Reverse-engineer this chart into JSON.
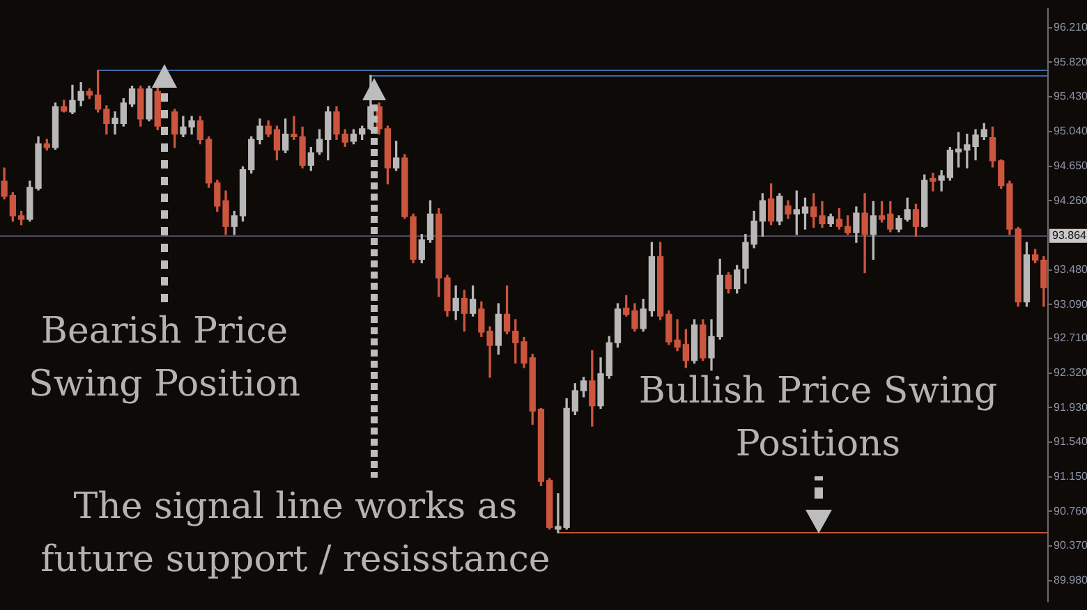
{
  "chart_data": {
    "type": "candlestick",
    "categories": [
      null,
      null,
      null,
      null,
      null,
      null,
      null,
      null,
      null,
      null,
      null,
      null,
      null,
      null,
      null,
      null,
      null,
      null,
      null,
      null,
      null,
      null,
      null,
      null,
      null,
      null,
      null,
      null,
      null,
      null,
      null,
      null,
      null,
      null,
      null,
      null,
      null,
      null,
      null,
      null,
      null,
      null,
      null,
      null,
      null,
      null,
      null,
      null,
      null,
      null,
      null,
      null,
      null,
      null,
      null,
      null,
      null,
      null,
      null,
      null,
      null,
      null,
      null,
      null,
      null,
      null,
      null,
      null,
      null,
      null,
      null,
      null,
      null,
      null,
      null,
      null,
      null,
      null,
      null,
      null,
      null,
      null,
      null,
      null,
      null,
      null,
      null,
      null,
      null,
      null,
      null,
      null,
      null,
      null,
      null,
      null,
      null,
      null,
      null,
      null,
      null,
      null,
      null,
      null,
      null,
      null,
      null,
      null,
      null,
      null,
      null,
      null,
      null,
      null,
      null,
      null,
      null,
      null,
      null,
      null,
      null,
      null,
      null
    ],
    "ohlc": [
      [
        94.48,
        94.63,
        94.28,
        94.31
      ],
      [
        94.32,
        94.35,
        94.03,
        94.09
      ],
      [
        94.09,
        94.14,
        93.99,
        94.05
      ],
      [
        94.05,
        94.48,
        94.03,
        94.41
      ],
      [
        94.4,
        94.98,
        94.38,
        94.9
      ],
      [
        94.9,
        94.95,
        94.83,
        94.86
      ],
      [
        94.86,
        95.36,
        94.84,
        95.32
      ],
      [
        95.32,
        95.39,
        95.26,
        95.27
      ],
      [
        95.26,
        95.56,
        95.24,
        95.39
      ],
      [
        95.39,
        95.59,
        95.33,
        95.49
      ],
      [
        95.49,
        95.52,
        95.41,
        95.45
      ],
      [
        95.45,
        95.73,
        95.26,
        95.29
      ],
      [
        95.29,
        95.33,
        95.01,
        95.13
      ],
      [
        95.13,
        95.26,
        95.01,
        95.19
      ],
      [
        95.13,
        95.41,
        95.1,
        95.36
      ],
      [
        95.35,
        95.55,
        95.32,
        95.52
      ],
      [
        95.52,
        95.55,
        95.1,
        95.18
      ],
      [
        95.18,
        95.55,
        95.16,
        95.52
      ],
      [
        95.49,
        95.55,
        95.06,
        95.1
      ],
      null,
      [
        95.26,
        95.29,
        94.86,
        95.01
      ],
      [
        95.01,
        95.21,
        94.98,
        95.09
      ],
      [
        95.09,
        95.21,
        95.01,
        95.16
      ],
      [
        95.16,
        95.21,
        94.9,
        94.95
      ],
      [
        94.95,
        94.98,
        94.41,
        94.46
      ],
      [
        94.46,
        94.49,
        94.14,
        94.2
      ],
      [
        94.26,
        94.37,
        93.88,
        93.97
      ],
      [
        93.97,
        94.14,
        93.88,
        94.09
      ],
      [
        94.09,
        94.64,
        94.03,
        94.61
      ],
      [
        94.61,
        94.98,
        94.57,
        94.95
      ],
      [
        94.95,
        95.18,
        94.9,
        95.1
      ],
      [
        95.1,
        95.16,
        94.98,
        95.01
      ],
      [
        95.06,
        95.1,
        94.72,
        94.83
      ],
      [
        94.83,
        95.18,
        94.8,
        95.01
      ],
      [
        95.01,
        95.21,
        94.95,
        94.98
      ],
      [
        94.98,
        95.09,
        94.63,
        94.66
      ],
      [
        94.66,
        94.86,
        94.6,
        94.8
      ],
      [
        94.81,
        95.06,
        94.78,
        94.95
      ],
      [
        94.95,
        95.32,
        94.72,
        95.26
      ],
      [
        95.26,
        95.32,
        94.95,
        95.01
      ],
      [
        95.01,
        95.06,
        94.87,
        94.92
      ],
      [
        94.93,
        95.06,
        94.9,
        95.01
      ],
      [
        95.01,
        95.1,
        94.95,
        95.07
      ],
      [
        95.07,
        95.67,
        95.06,
        95.32
      ],
      [
        95.32,
        95.36,
        95.01,
        95.07
      ],
      [
        95.07,
        95.1,
        94.45,
        94.63
      ],
      [
        94.63,
        94.93,
        94.6,
        94.74
      ],
      [
        94.74,
        94.78,
        94.06,
        94.08
      ],
      [
        94.08,
        94.11,
        93.56,
        93.6
      ],
      [
        93.6,
        93.88,
        93.56,
        93.82
      ],
      [
        93.82,
        94.26,
        93.79,
        94.11
      ],
      [
        94.11,
        94.17,
        93.18,
        93.39
      ],
      [
        93.39,
        93.42,
        92.96,
        93.02
      ],
      [
        93.02,
        93.3,
        92.92,
        93.16
      ],
      [
        93.16,
        93.25,
        92.79,
        92.99
      ],
      [
        92.99,
        93.3,
        92.96,
        93.15
      ],
      [
        93.04,
        93.12,
        92.73,
        92.78
      ],
      [
        92.79,
        92.84,
        92.27,
        92.63
      ],
      [
        92.63,
        93.1,
        92.53,
        92.98
      ],
      [
        92.98,
        93.3,
        92.76,
        92.79
      ],
      [
        92.79,
        92.92,
        92.43,
        92.66
      ],
      [
        92.67,
        92.72,
        92.38,
        92.43
      ],
      [
        92.49,
        92.53,
        91.74,
        91.89
      ],
      [
        91.91,
        91.92,
        91.05,
        91.1
      ],
      [
        91.11,
        91.13,
        90.56,
        90.58
      ],
      [
        90.56,
        90.96,
        90.52,
        90.59
      ],
      [
        90.58,
        92.03,
        90.56,
        91.92
      ],
      [
        91.89,
        92.2,
        91.85,
        92.12
      ],
      [
        92.12,
        92.27,
        92.05,
        92.23
      ],
      [
        92.23,
        92.57,
        91.72,
        91.95
      ],
      [
        91.95,
        92.49,
        91.92,
        92.31
      ],
      [
        92.29,
        92.73,
        92.26,
        92.66
      ],
      [
        92.66,
        93.1,
        92.61,
        93.04
      ],
      [
        93.05,
        93.19,
        92.96,
        92.98
      ],
      [
        93.02,
        93.1,
        92.79,
        92.82
      ],
      [
        92.82,
        93.15,
        92.79,
        93.04
      ],
      [
        93.02,
        93.79,
        92.96,
        93.63
      ],
      [
        93.63,
        93.79,
        92.92,
        92.96
      ],
      [
        92.98,
        93.02,
        92.64,
        92.67
      ],
      [
        92.69,
        92.92,
        92.57,
        92.61
      ],
      [
        92.64,
        92.81,
        92.38,
        92.46
      ],
      [
        92.46,
        92.92,
        92.43,
        92.86
      ],
      [
        92.86,
        92.92,
        92.46,
        92.49
      ],
      [
        92.49,
        92.92,
        92.35,
        92.73
      ],
      [
        92.73,
        93.6,
        92.7,
        93.42
      ],
      [
        93.42,
        93.45,
        93.22,
        93.27
      ],
      [
        93.27,
        93.53,
        93.22,
        93.48
      ],
      [
        93.5,
        93.88,
        93.33,
        93.79
      ],
      [
        93.77,
        94.14,
        93.73,
        94.03
      ],
      [
        94.03,
        94.34,
        93.86,
        94.26
      ],
      [
        94.28,
        94.45,
        93.99,
        94.03
      ],
      [
        94.03,
        94.34,
        93.99,
        94.31
      ],
      [
        94.2,
        94.26,
        94.06,
        94.11
      ],
      [
        94.11,
        94.37,
        93.88,
        94.16
      ],
      [
        94.12,
        94.29,
        93.94,
        94.19
      ],
      [
        94.19,
        94.34,
        93.96,
        94.08
      ],
      [
        94.09,
        94.25,
        93.96,
        94.0
      ],
      [
        94.0,
        94.11,
        93.97,
        94.08
      ],
      [
        94.05,
        94.17,
        93.94,
        93.97
      ],
      [
        93.97,
        94.09,
        93.88,
        93.9
      ],
      [
        93.9,
        94.19,
        93.79,
        94.12
      ],
      [
        94.12,
        94.34,
        93.45,
        93.88
      ],
      [
        93.88,
        94.25,
        93.6,
        94.09
      ],
      [
        94.09,
        94.25,
        94.02,
        94.05
      ],
      [
        94.11,
        94.25,
        93.91,
        93.94
      ],
      [
        93.94,
        94.09,
        93.91,
        94.06
      ],
      [
        94.05,
        94.29,
        94.03,
        94.16
      ],
      [
        94.16,
        94.22,
        93.86,
        93.97
      ],
      [
        93.97,
        94.55,
        93.96,
        94.49
      ],
      [
        94.51,
        94.57,
        94.37,
        94.48
      ],
      [
        94.49,
        94.6,
        94.37,
        94.54
      ],
      [
        94.52,
        94.86,
        94.49,
        94.83
      ],
      [
        94.81,
        95.03,
        94.64,
        94.84
      ],
      [
        94.83,
        95.01,
        94.63,
        94.89
      ],
      [
        94.87,
        95.06,
        94.72,
        95.0
      ],
      [
        94.98,
        95.13,
        94.95,
        95.06
      ],
      [
        94.97,
        95.09,
        94.64,
        94.71
      ],
      [
        94.71,
        94.72,
        94.4,
        94.43
      ],
      [
        94.45,
        94.48,
        93.88,
        93.94
      ],
      [
        93.94,
        93.96,
        93.07,
        93.12
      ],
      [
        93.12,
        93.79,
        93.07,
        93.65
      ],
      [
        93.65,
        93.71,
        93.56,
        93.59
      ],
      [
        93.59,
        93.63,
        93.07,
        93.28
      ]
    ],
    "colors": [
      "#cc553e",
      "#cc553e",
      "#cc553e",
      "#b8b8b8",
      "#b8b8b8",
      "#cc553e",
      "#b8b8b8",
      "#cc553e",
      "#b8b8b8",
      "#b8b8b8",
      "#cc553e",
      "#cc553e",
      "#cc553e",
      "#b8b8b8",
      "#b8b8b8",
      "#b8b8b8",
      "#cc553e",
      "#b8b8b8",
      "#cc553e",
      null,
      "#cc553e",
      "#b8b8b8",
      "#b8b8b8",
      "#cc553e",
      "#cc553e",
      "#cc553e",
      "#cc553e",
      "#b8b8b8",
      "#b8b8b8",
      "#b8b8b8",
      "#b8b8b8",
      "#cc553e",
      "#cc553e",
      "#b8b8b8",
      "#cc553e",
      "#cc553e",
      "#b8b8b8",
      "#b8b8b8",
      "#b8b8b8",
      "#cc553e",
      "#cc553e",
      "#b8b8b8",
      "#b8b8b8",
      "#b8b8b8",
      "#cc553e",
      "#cc553e",
      "#b8b8b8",
      "#cc553e",
      "#cc553e",
      "#b8b8b8",
      "#b8b8b8",
      "#cc553e",
      "#cc553e",
      "#b8b8b8",
      "#cc553e",
      "#b8b8b8",
      "#cc553e",
      "#cc553e",
      "#b8b8b8",
      "#cc553e",
      "#cc553e",
      "#cc553e",
      "#cc553e",
      "#cc553e",
      "#cc553e",
      "#b8b8b8",
      "#b8b8b8",
      "#b8b8b8",
      "#b8b8b8",
      "#cc553e",
      "#b8b8b8",
      "#b8b8b8",
      "#b8b8b8",
      "#cc553e",
      "#cc553e",
      "#b8b8b8",
      "#b8b8b8",
      "#cc553e",
      "#cc553e",
      "#cc553e",
      "#cc553e",
      "#b8b8b8",
      "#cc553e",
      "#b8b8b8",
      "#b8b8b8",
      "#cc553e",
      "#b8b8b8",
      "#b8b8b8",
      "#b8b8b8",
      "#b8b8b8",
      "#cc553e",
      "#b8b8b8",
      "#cc553e",
      "#b8b8b8",
      "#b8b8b8",
      "#cc553e",
      "#cc553e",
      "#b8b8b8",
      "#cc553e",
      "#cc553e",
      "#b8b8b8",
      "#cc553e",
      "#b8b8b8",
      "#cc553e",
      "#cc553e",
      "#b8b8b8",
      "#b8b8b8",
      "#cc553e",
      "#b8b8b8",
      "#cc553e",
      "#b8b8b8",
      "#b8b8b8",
      "#b8b8b8",
      "#b8b8b8",
      "#b8b8b8",
      "#b8b8b8",
      "#cc553e",
      "#cc553e",
      "#cc553e",
      "#cc553e",
      "#b8b8b8",
      "#cc553e",
      "#cc553e"
    ],
    "ylim": [
      89.74,
      96.43
    ],
    "yticks": [
      {
        "value": 89.98,
        "label": "89.980"
      },
      {
        "value": 90.37,
        "label": "90.370"
      },
      {
        "value": 90.76,
        "label": "90.760"
      },
      {
        "value": 91.15,
        "label": "91.150"
      },
      {
        "value": 91.54,
        "label": "91.540"
      },
      {
        "value": 91.93,
        "label": "91.930"
      },
      {
        "value": 92.32,
        "label": "92.320"
      },
      {
        "value": 92.71,
        "label": "92.710"
      },
      {
        "value": 93.09,
        "label": "93.090"
      },
      {
        "value": 93.48,
        "label": "93.480"
      },
      {
        "value": 94.26,
        "label": "94.260"
      },
      {
        "value": 94.65,
        "label": "94.650"
      },
      {
        "value": 95.04,
        "label": "95.040"
      },
      {
        "value": 95.43,
        "label": "95.430"
      },
      {
        "value": 95.82,
        "label": "95.820"
      },
      {
        "value": 96.21,
        "label": "96.210"
      }
    ],
    "ref_lines": [
      {
        "axis": "y",
        "value": 95.73,
        "color": "#3e6aa8"
      },
      {
        "axis": "y",
        "value": 95.67,
        "color": "#3e6aa8"
      },
      {
        "axis": "y",
        "value": 93.864,
        "label": "93.864",
        "color": "#4c4c60"
      },
      {
        "axis": "y",
        "value": 90.52,
        "color": "#c4563f"
      }
    ],
    "annotations": [
      "Bearish Price Swing Position",
      "The signal line works as future support / resisstance",
      "Bullish Price Swing Positions"
    ],
    "tick_labels": "y"
  }
}
